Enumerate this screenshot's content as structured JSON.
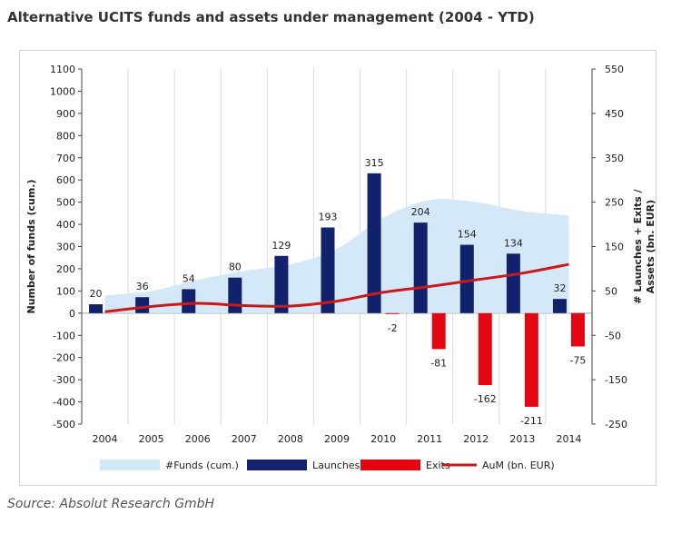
{
  "header": {
    "title": "Alternative UCITS funds and assets under management (2004 - YTD)"
  },
  "footer": {
    "source": "Source: Absolut Research GmbH"
  },
  "chart_data": {
    "type": "bar",
    "categories": [
      "2004",
      "2005",
      "2006",
      "2007",
      "2008",
      "2009",
      "2010",
      "2011",
      "2012",
      "2013",
      "2014"
    ],
    "left_axis": {
      "label": "Number of funds (cum.)",
      "ylim": [
        -500,
        1100
      ],
      "ticks": [
        -500,
        -400,
        -300,
        -200,
        -100,
        0,
        100,
        200,
        300,
        400,
        500,
        600,
        700,
        800,
        900,
        1000,
        1100
      ]
    },
    "right_axis": {
      "label_line1": "# Launches + Exits /",
      "label_line2": "Assets (bn. EUR)",
      "ylim": [
        -250,
        550
      ],
      "ticks": [
        -250,
        -150,
        -50,
        50,
        150,
        250,
        350,
        450,
        550
      ]
    },
    "grid": true,
    "legend_position": "bottom",
    "series": [
      {
        "name": "#Funds (cum.)",
        "type": "area",
        "axis": "left",
        "color": "#d5e8f7",
        "values": [
          80,
          100,
          150,
          190,
          220,
          290,
          430,
          510,
          500,
          460,
          440
        ]
      },
      {
        "name": "Launches",
        "type": "bar",
        "axis": "right",
        "color": "#12216b",
        "values": [
          20,
          36,
          54,
          80,
          129,
          193,
          315,
          204,
          154,
          134,
          32
        ],
        "labels": [
          "20",
          "36",
          "54",
          "80",
          "129",
          "193",
          "315",
          "204",
          "154",
          "134",
          "32"
        ]
      },
      {
        "name": "Exits",
        "type": "bar",
        "axis": "right",
        "color": "#e30613",
        "values": [
          0,
          0,
          0,
          0,
          0,
          0,
          -2,
          -81,
          -162,
          -211,
          -75
        ],
        "labels": [
          "",
          "",
          "",
          "",
          "",
          "",
          "-2",
          "-81",
          "-162",
          "-211",
          "-75"
        ]
      },
      {
        "name": "AuM (bn. EUR)",
        "type": "line",
        "axis": "right",
        "color": "#c81a1a",
        "values": [
          3,
          15,
          22,
          17,
          16,
          27,
          47,
          60,
          75,
          90,
          110
        ]
      }
    ]
  }
}
